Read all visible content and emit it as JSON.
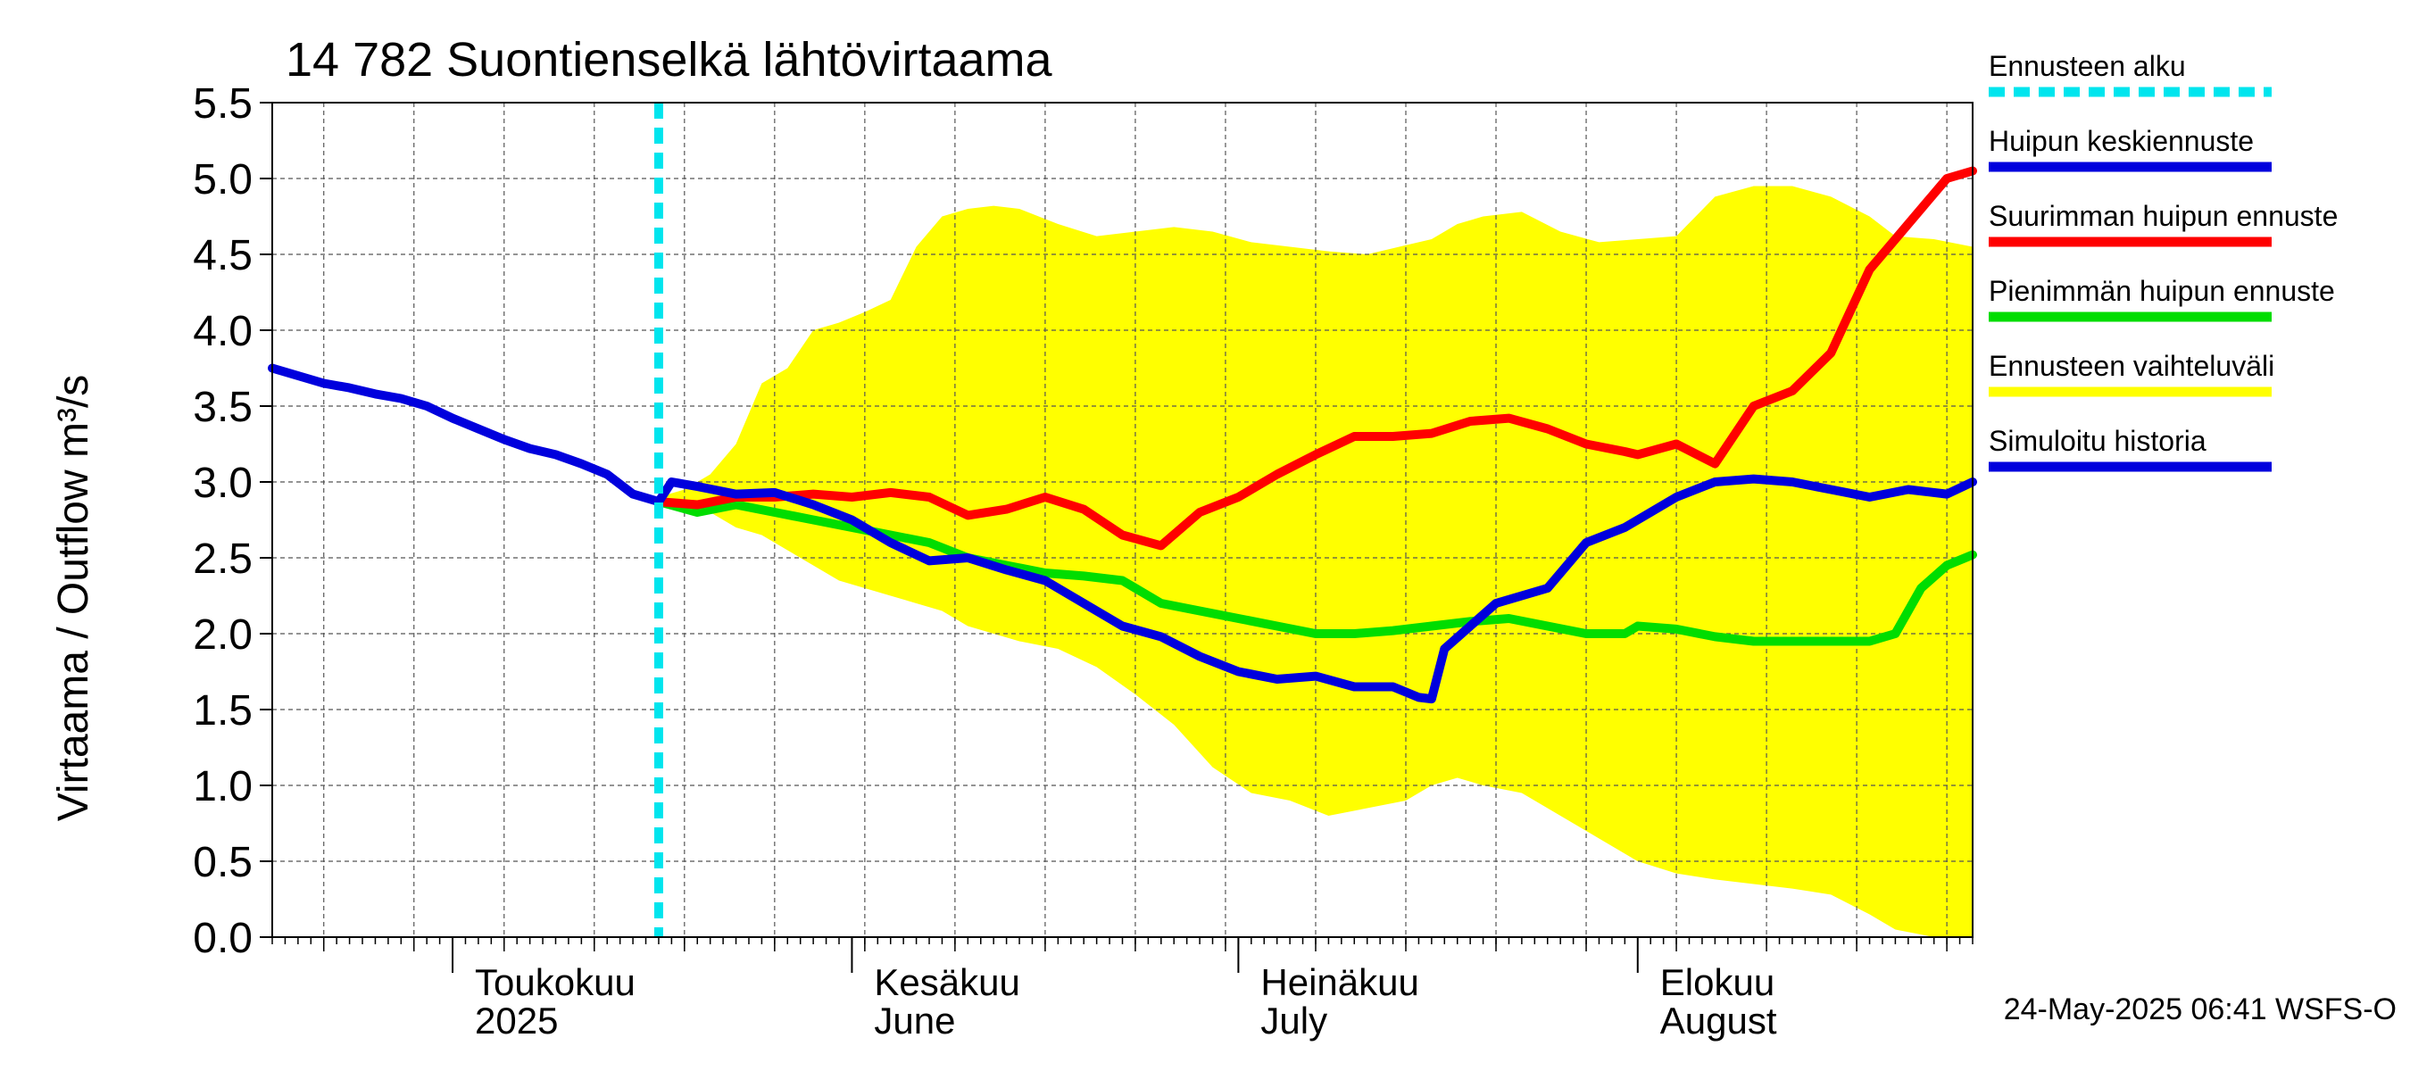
{
  "chart_data": {
    "type": "line",
    "title": "14 782 Suontienselkä lähtövirtaama",
    "ylabel": "Virtaama / Outflow    m³/s",
    "xlabel": "",
    "ylim": [
      0,
      5.5
    ],
    "yticks": [
      "0.0",
      "0.5",
      "1.0",
      "1.5",
      "2.0",
      "2.5",
      "3.0",
      "3.5",
      "4.0",
      "4.5",
      "5.0",
      "5.5"
    ],
    "xlim": [
      "2025-04-17",
      "2025-08-27"
    ],
    "grid": true,
    "legend_position": "right",
    "month_labels": [
      {
        "date": "2025-05-01",
        "line1": "Toukokuu",
        "line2": "2025"
      },
      {
        "date": "2025-06-01",
        "line1": "Kesäkuu",
        "line2": "June"
      },
      {
        "date": "2025-07-01",
        "line1": "Heinäkuu",
        "line2": "July"
      },
      {
        "date": "2025-08-01",
        "line1": "Elokuu",
        "line2": "August"
      }
    ],
    "forecast_start": "2025-05-17",
    "series": [
      {
        "name": "Ennusteen vaihteluväli",
        "kind": "band",
        "color": "#ffff00",
        "x": [
          "2025-05-17",
          "2025-05-19",
          "2025-05-21",
          "2025-05-23",
          "2025-05-25",
          "2025-05-27",
          "2025-05-29",
          "2025-05-31",
          "2025-06-02",
          "2025-06-04",
          "2025-06-06",
          "2025-06-08",
          "2025-06-10",
          "2025-06-12",
          "2025-06-14",
          "2025-06-17",
          "2025-06-20",
          "2025-06-23",
          "2025-06-26",
          "2025-06-29",
          "2025-07-02",
          "2025-07-05",
          "2025-07-08",
          "2025-07-11",
          "2025-07-14",
          "2025-07-16",
          "2025-07-18",
          "2025-07-20",
          "2025-07-23",
          "2025-07-26",
          "2025-07-29",
          "2025-08-01",
          "2025-08-04",
          "2025-08-07",
          "2025-08-10",
          "2025-08-13",
          "2025-08-16",
          "2025-08-19",
          "2025-08-21",
          "2025-08-24",
          "2025-08-27"
        ],
        "upper": [
          2.9,
          2.95,
          3.05,
          3.25,
          3.65,
          3.75,
          4.0,
          4.05,
          4.12,
          4.2,
          4.55,
          4.75,
          4.8,
          4.82,
          4.8,
          4.7,
          4.62,
          4.65,
          4.68,
          4.65,
          4.58,
          4.55,
          4.52,
          4.5,
          4.56,
          4.6,
          4.7,
          4.75,
          4.78,
          4.65,
          4.58,
          4.6,
          4.62,
          4.88,
          4.95,
          4.95,
          4.88,
          4.75,
          4.62,
          4.6,
          4.55
        ],
        "lower": [
          2.9,
          2.85,
          2.8,
          2.7,
          2.65,
          2.55,
          2.45,
          2.35,
          2.3,
          2.25,
          2.2,
          2.15,
          2.05,
          2.0,
          1.95,
          1.9,
          1.78,
          1.6,
          1.4,
          1.12,
          0.95,
          0.9,
          0.8,
          0.85,
          0.9,
          1.0,
          1.05,
          1.0,
          0.95,
          0.8,
          0.65,
          0.5,
          0.42,
          0.38,
          0.35,
          0.32,
          0.28,
          0.15,
          0.05,
          0.0,
          0.0
        ]
      },
      {
        "name": "Suurimman huipun ennuste",
        "kind": "line",
        "color": "#ff0000",
        "x": [
          "2025-05-17",
          "2025-05-20",
          "2025-05-23",
          "2025-05-26",
          "2025-05-29",
          "2025-06-01",
          "2025-06-04",
          "2025-06-07",
          "2025-06-10",
          "2025-06-13",
          "2025-06-16",
          "2025-06-19",
          "2025-06-22",
          "2025-06-25",
          "2025-06-28",
          "2025-07-01",
          "2025-07-04",
          "2025-07-07",
          "2025-07-10",
          "2025-07-13",
          "2025-07-16",
          "2025-07-19",
          "2025-07-22",
          "2025-07-25",
          "2025-07-28",
          "2025-07-31",
          "2025-08-01",
          "2025-08-04",
          "2025-08-07",
          "2025-08-10",
          "2025-08-13",
          "2025-08-16",
          "2025-08-19",
          "2025-08-22",
          "2025-08-25",
          "2025-08-27"
        ],
        "values": [
          2.87,
          2.85,
          2.9,
          2.9,
          2.92,
          2.9,
          2.93,
          2.9,
          2.78,
          2.82,
          2.9,
          2.82,
          2.65,
          2.58,
          2.8,
          2.9,
          3.05,
          3.18,
          3.3,
          3.3,
          3.32,
          3.4,
          3.42,
          3.35,
          3.25,
          3.2,
          3.18,
          3.25,
          3.12,
          3.5,
          3.6,
          3.85,
          4.4,
          4.7,
          5.0,
          5.05
        ]
      },
      {
        "name": "Pienimmän huipun ennuste",
        "kind": "line",
        "color": "#00dd00",
        "x": [
          "2025-05-17",
          "2025-05-20",
          "2025-05-23",
          "2025-05-26",
          "2025-05-29",
          "2025-06-01",
          "2025-06-04",
          "2025-06-07",
          "2025-06-10",
          "2025-06-13",
          "2025-06-16",
          "2025-06-19",
          "2025-06-22",
          "2025-06-25",
          "2025-06-28",
          "2025-07-01",
          "2025-07-04",
          "2025-07-07",
          "2025-07-10",
          "2025-07-13",
          "2025-07-16",
          "2025-07-19",
          "2025-07-22",
          "2025-07-25",
          "2025-07-28",
          "2025-07-31",
          "2025-08-01",
          "2025-08-04",
          "2025-08-07",
          "2025-08-10",
          "2025-08-13",
          "2025-08-16",
          "2025-08-19",
          "2025-08-21",
          "2025-08-23",
          "2025-08-25",
          "2025-08-27"
        ],
        "values": [
          2.87,
          2.8,
          2.85,
          2.8,
          2.75,
          2.7,
          2.65,
          2.6,
          2.5,
          2.45,
          2.4,
          2.38,
          2.35,
          2.2,
          2.15,
          2.1,
          2.05,
          2.0,
          2.0,
          2.02,
          2.05,
          2.08,
          2.1,
          2.05,
          2.0,
          2.0,
          2.05,
          2.03,
          1.98,
          1.95,
          1.95,
          1.95,
          1.95,
          2.0,
          2.3,
          2.45,
          2.52
        ]
      },
      {
        "name": "Huipun keskiennuste",
        "kind": "line",
        "color": "#0000dd",
        "x": [
          "2025-05-17",
          "2025-05-18",
          "2025-05-20",
          "2025-05-23",
          "2025-05-26",
          "2025-05-29",
          "2025-06-01",
          "2025-06-04",
          "2025-06-07",
          "2025-06-10",
          "2025-06-13",
          "2025-06-16",
          "2025-06-19",
          "2025-06-22",
          "2025-06-25",
          "2025-06-28",
          "2025-07-01",
          "2025-07-04",
          "2025-07-07",
          "2025-07-10",
          "2025-07-13",
          "2025-07-15",
          "2025-07-16",
          "2025-07-17",
          "2025-07-19",
          "2025-07-21",
          "2025-07-25",
          "2025-07-28",
          "2025-07-31",
          "2025-08-01",
          "2025-08-04",
          "2025-08-07",
          "2025-08-10",
          "2025-08-13",
          "2025-08-16",
          "2025-08-19",
          "2025-08-22",
          "2025-08-25",
          "2025-08-27"
        ],
        "values": [
          2.87,
          3.0,
          2.97,
          2.92,
          2.93,
          2.85,
          2.75,
          2.6,
          2.48,
          2.5,
          2.42,
          2.35,
          2.2,
          2.05,
          1.98,
          1.85,
          1.75,
          1.7,
          1.72,
          1.65,
          1.65,
          1.58,
          1.57,
          1.9,
          2.05,
          2.2,
          2.3,
          2.6,
          2.7,
          2.75,
          2.9,
          3.0,
          3.02,
          3.0,
          2.95,
          2.9,
          2.95,
          2.92,
          3.0
        ]
      },
      {
        "name": "Simuloitu historia",
        "kind": "line",
        "color": "#0000dd",
        "x": [
          "2025-04-17",
          "2025-04-19",
          "2025-04-21",
          "2025-04-23",
          "2025-04-25",
          "2025-04-27",
          "2025-04-29",
          "2025-05-01",
          "2025-05-03",
          "2025-05-05",
          "2025-05-07",
          "2025-05-09",
          "2025-05-11",
          "2025-05-13",
          "2025-05-15",
          "2025-05-17"
        ],
        "values": [
          3.75,
          3.7,
          3.65,
          3.62,
          3.58,
          3.55,
          3.5,
          3.42,
          3.35,
          3.28,
          3.22,
          3.18,
          3.12,
          3.05,
          2.92,
          2.87
        ]
      },
      {
        "name": "Ennusteen alku",
        "kind": "vline",
        "color": "#00e5ee",
        "x": "2025-05-17"
      }
    ],
    "legend": [
      {
        "label": "Ennusteen alku",
        "color": "#00e5ee",
        "style": "dashed"
      },
      {
        "label": "Huipun keskiennuste",
        "color": "#0000dd",
        "style": "solid"
      },
      {
        "label": "Suurimman huipun ennuste",
        "color": "#ff0000",
        "style": "solid"
      },
      {
        "label": "Pienimmän huipun ennuste",
        "color": "#00dd00",
        "style": "solid"
      },
      {
        "label": "Ennusteen vaihteluväli",
        "color": "#ffff00",
        "style": "solid"
      },
      {
        "label": "Simuloitu historia",
        "color": "#0000dd",
        "style": "solid"
      }
    ],
    "footer": "24-May-2025 06:41 WSFS-O"
  }
}
